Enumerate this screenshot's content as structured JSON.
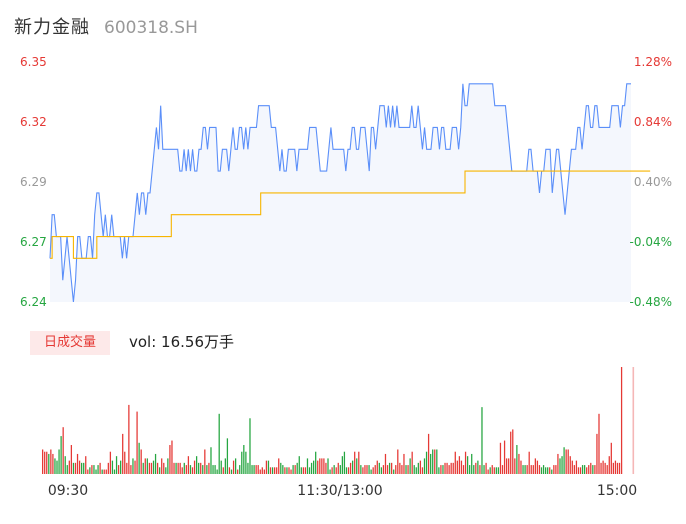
{
  "header": {
    "name": "新力金融",
    "code": "600318.SH"
  },
  "colors": {
    "price_line": "#5b8ff9",
    "avg_line": "#f7b500",
    "up": "#e53935",
    "down": "#26a641",
    "neutral": "#999999",
    "area": "#f4f7fd"
  },
  "volume_panel": {
    "badge": "日成交量",
    "value_text": "vol: 16.56万手"
  },
  "chart_data": [
    {
      "type": "line",
      "x_ticks": [
        "09:30",
        "11:30/13:00",
        "15:00"
      ],
      "y_left_ticks": [
        "6.35",
        "6.32",
        "6.29",
        "6.27",
        "6.24"
      ],
      "y_right_ticks": [
        "1.28%",
        "0.84%",
        "0.40%",
        "-0.04%",
        "-0.48%"
      ],
      "ylim": [
        6.24,
        6.35
      ],
      "series": [
        {
          "key": "price",
          "values": [
            6.26,
            6.28,
            6.28,
            6.27,
            6.27,
            6.27,
            6.25,
            6.26,
            6.27,
            6.26,
            6.25,
            6.24,
            6.25,
            6.27,
            6.27,
            6.26,
            6.26,
            6.26,
            6.27,
            6.27,
            6.26,
            6.28,
            6.29,
            6.29,
            6.28,
            6.27,
            6.28,
            6.27,
            6.27,
            6.28,
            6.27,
            6.27,
            6.27,
            6.27,
            6.26,
            6.27,
            6.26,
            6.27,
            6.27,
            6.27,
            6.28,
            6.29,
            6.28,
            6.29,
            6.29,
            6.28,
            6.29,
            6.29,
            6.3,
            6.31,
            6.32,
            6.31,
            6.33,
            6.31,
            6.31,
            6.31,
            6.31,
            6.31,
            6.31,
            6.31,
            6.31,
            6.3,
            6.3,
            6.31,
            6.3,
            6.31,
            6.3,
            6.31,
            6.3,
            6.3,
            6.31,
            6.31,
            6.32,
            6.32,
            6.31,
            6.32,
            6.32,
            6.32,
            6.32,
            6.3,
            6.3,
            6.31,
            6.31,
            6.31,
            6.3,
            6.31,
            6.32,
            6.31,
            6.31,
            6.32,
            6.32,
            6.31,
            6.32,
            6.31,
            6.32,
            6.32,
            6.32,
            6.32,
            6.33,
            6.33,
            6.33,
            6.33,
            6.33,
            6.33,
            6.32,
            6.32,
            6.32,
            6.31,
            6.3,
            6.31,
            6.3,
            6.3,
            6.31,
            6.31,
            6.31,
            6.31,
            6.3,
            6.31,
            6.31,
            6.31,
            6.31,
            6.31,
            6.32,
            6.32,
            6.32,
            6.32,
            6.31,
            6.3,
            6.3,
            6.3,
            6.3,
            6.31,
            6.32,
            6.31,
            6.31,
            6.31,
            6.31,
            6.31,
            6.31,
            6.3,
            6.31,
            6.31,
            6.32,
            6.32,
            6.31,
            6.31,
            6.32,
            6.32,
            6.32,
            6.31,
            6.3,
            6.32,
            6.32,
            6.31,
            6.32,
            6.33,
            6.33,
            6.33,
            6.32,
            6.33,
            6.32,
            6.33,
            6.32,
            6.33,
            6.32,
            6.32,
            6.32,
            6.32,
            6.32,
            6.32,
            6.33,
            6.32,
            6.32,
            6.33,
            6.32,
            6.31,
            6.32,
            6.31,
            6.31,
            6.31,
            6.32,
            6.32,
            6.32,
            6.31,
            6.32,
            6.32,
            6.31,
            6.31,
            6.31,
            6.32,
            6.32,
            6.32,
            6.31,
            6.32,
            6.34,
            6.33,
            6.33,
            6.34,
            6.34,
            6.34,
            6.34,
            6.34,
            6.34,
            6.34,
            6.34,
            6.34,
            6.34,
            6.34,
            6.34,
            6.33,
            6.33,
            6.33,
            6.33,
            6.33,
            6.33,
            6.32,
            6.31,
            6.3,
            6.3,
            6.3,
            6.3,
            6.3,
            6.3,
            6.3,
            6.3,
            6.31,
            6.31,
            6.3,
            6.3,
            6.3,
            6.29,
            6.3,
            6.3,
            6.31,
            6.31,
            6.31,
            6.29,
            6.3,
            6.31,
            6.31,
            6.3,
            6.29,
            6.28,
            6.29,
            6.3,
            6.31,
            6.31,
            6.31,
            6.32,
            6.32,
            6.31,
            6.32,
            6.33,
            6.33,
            6.32,
            6.32,
            6.33,
            6.33,
            6.32,
            6.32,
            6.32,
            6.32,
            6.32,
            6.32,
            6.33,
            6.33,
            6.33,
            6.33,
            6.32,
            6.33,
            6.33,
            6.34,
            6.34,
            6.34
          ]
        },
        {
          "key": "average",
          "values": [
            6.26,
            6.27,
            6.27,
            6.27,
            6.27,
            6.27,
            6.27,
            6.27,
            6.27,
            6.27,
            6.27,
            6.26,
            6.26,
            6.26,
            6.26,
            6.26,
            6.26,
            6.26,
            6.26,
            6.26,
            6.26,
            6.26,
            6.27,
            6.27,
            6.27,
            6.27,
            6.27,
            6.27,
            6.27,
            6.27,
            6.27,
            6.27,
            6.27,
            6.27,
            6.27,
            6.27,
            6.27,
            6.27,
            6.27,
            6.27,
            6.27,
            6.27,
            6.27,
            6.27,
            6.27,
            6.27,
            6.27,
            6.27,
            6.27,
            6.27,
            6.27,
            6.27,
            6.27,
            6.27,
            6.27,
            6.27,
            6.27,
            6.28,
            6.28,
            6.28,
            6.28,
            6.28,
            6.28,
            6.28,
            6.28,
            6.28,
            6.28,
            6.28,
            6.28,
            6.28,
            6.28,
            6.28,
            6.28,
            6.28,
            6.28,
            6.28,
            6.28,
            6.28,
            6.28,
            6.28,
            6.28,
            6.28,
            6.28,
            6.28,
            6.28,
            6.28,
            6.28,
            6.28,
            6.28,
            6.28,
            6.28,
            6.28,
            6.28,
            6.28,
            6.28,
            6.28,
            6.28,
            6.28,
            6.28,
            6.29,
            6.29,
            6.29,
            6.29,
            6.29,
            6.29,
            6.29,
            6.29,
            6.29,
            6.29,
            6.29,
            6.29,
            6.29,
            6.29,
            6.29,
            6.29,
            6.29,
            6.29,
            6.29,
            6.29,
            6.29,
            6.29,
            6.29,
            6.29,
            6.29,
            6.29,
            6.29,
            6.29,
            6.29,
            6.29,
            6.29,
            6.29,
            6.29,
            6.29,
            6.29,
            6.29,
            6.29,
            6.29,
            6.29,
            6.29,
            6.29,
            6.29,
            6.29,
            6.29,
            6.29,
            6.29,
            6.29,
            6.29,
            6.29,
            6.29,
            6.29,
            6.29,
            6.29,
            6.29,
            6.29,
            6.29,
            6.29,
            6.29,
            6.29,
            6.29,
            6.29,
            6.29,
            6.29,
            6.29,
            6.29,
            6.29,
            6.29,
            6.29,
            6.29,
            6.29,
            6.29,
            6.29,
            6.29,
            6.29,
            6.29,
            6.29,
            6.29,
            6.29,
            6.29,
            6.29,
            6.29,
            6.29,
            6.29,
            6.29,
            6.29,
            6.29,
            6.29,
            6.29,
            6.29,
            6.29,
            6.29,
            6.29,
            6.29,
            6.29,
            6.29,
            6.29,
            6.3,
            6.3,
            6.3,
            6.3,
            6.3,
            6.3,
            6.3,
            6.3,
            6.3,
            6.3,
            6.3,
            6.3,
            6.3,
            6.3,
            6.3,
            6.3,
            6.3,
            6.3,
            6.3,
            6.3,
            6.3,
            6.3,
            6.3,
            6.3,
            6.3,
            6.3,
            6.3,
            6.3,
            6.3,
            6.3,
            6.3,
            6.3,
            6.3,
            6.3,
            6.3,
            6.3,
            6.3,
            6.3,
            6.3,
            6.3,
            6.3,
            6.3,
            6.3,
            6.3,
            6.3,
            6.3,
            6.3,
            6.3,
            6.3,
            6.3,
            6.3,
            6.3,
            6.3,
            6.3,
            6.3,
            6.3,
            6.3,
            6.3,
            6.3,
            6.3,
            6.3,
            6.3,
            6.3,
            6.3,
            6.3,
            6.3,
            6.3,
            6.3,
            6.3,
            6.3,
            6.3,
            6.3,
            6.3,
            6.3,
            6.3,
            6.3,
            6.3,
            6.3,
            6.3,
            6.3,
            6.3,
            6.3,
            6.3,
            6.3,
            6.3,
            6.3,
            6.3,
            6.3
          ]
        }
      ]
    },
    {
      "type": "bar",
      "title": "日成交量",
      "value_text": "vol: 16.56万手",
      "values": [
        11,
        10,
        10,
        9,
        11,
        9,
        7,
        6,
        11,
        17,
        21,
        8,
        4,
        6,
        13,
        5,
        5,
        9,
        6,
        5,
        5,
        8,
        2,
        3,
        4,
        4,
        2,
        4,
        5,
        2,
        2,
        2,
        5,
        10,
        6,
        2,
        8,
        4,
        6,
        18,
        10,
        5,
        31,
        4,
        7,
        6,
        28,
        14,
        11,
        5,
        7,
        7,
        5,
        5,
        6,
        9,
        5,
        3,
        7,
        5,
        3,
        7,
        13,
        15,
        5,
        5,
        5,
        5,
        3,
        5,
        4,
        8,
        4,
        3,
        6,
        8,
        5,
        5,
        4,
        11,
        4,
        5,
        12,
        4,
        4,
        2,
        27,
        6,
        3,
        7,
        16,
        3,
        2,
        6,
        7,
        2,
        4,
        10,
        13,
        10,
        5,
        25,
        4,
        4,
        4,
        4,
        2,
        3,
        2,
        6,
        6,
        3,
        3,
        3,
        3,
        7,
        5,
        4,
        3,
        3,
        3,
        2,
        4,
        4,
        5,
        8,
        3,
        3,
        3,
        7,
        3,
        5,
        6,
        10,
        6,
        7,
        7,
        7,
        5,
        7,
        2,
        3,
        4,
        3,
        5,
        4,
        8,
        10,
        3,
        3,
        5,
        6,
        10,
        7,
        10,
        4,
        3,
        4,
        4,
        4,
        2,
        3,
        4,
        6,
        5,
        3,
        4,
        9,
        4,
        5,
        5,
        2,
        4,
        11,
        5,
        4,
        9,
        4,
        4,
        7,
        10,
        4,
        3,
        5,
        6,
        3,
        7,
        10,
        18,
        9,
        11,
        11,
        11,
        3,
        4,
        4,
        5,
        5,
        4,
        5,
        5,
        10,
        6,
        8,
        6,
        4,
        10,
        8,
        4,
        9,
        4,
        5,
        6,
        4,
        30,
        4,
        5,
        2,
        3,
        4,
        3,
        3,
        3,
        14,
        4,
        15,
        7,
        7,
        19,
        20,
        7,
        13,
        9,
        6,
        4,
        4,
        4,
        10,
        4,
        4,
        7,
        6,
        4,
        3,
        4,
        3,
        3,
        3,
        2,
        4,
        4,
        9,
        7,
        8,
        12,
        11,
        11,
        8,
        6,
        4,
        6,
        3,
        3,
        4,
        4,
        3,
        4,
        5,
        4,
        4,
        18,
        27,
        5,
        6,
        5,
        4,
        8,
        14,
        5,
        6,
        5,
        5,
        48
      ],
      "colors": [
        "r",
        "r",
        "r",
        "g",
        "r",
        "r",
        "g",
        "g",
        "g",
        "g",
        "r",
        "g",
        "g",
        "r",
        "r",
        "g",
        "r",
        "r",
        "r",
        "g",
        "g",
        "r",
        "r",
        "g",
        "r",
        "g",
        "g",
        "g",
        "r",
        "g",
        "r",
        "r",
        "r",
        "r",
        "g",
        "g",
        "g",
        "r",
        "g",
        "r",
        "r",
        "r",
        "r",
        "r",
        "g",
        "r",
        "r",
        "g",
        "r",
        "g",
        "r",
        "g",
        "r",
        "r",
        "g",
        "g",
        "r",
        "g",
        "r",
        "r",
        "g",
        "g",
        "r",
        "r",
        "r",
        "g",
        "r",
        "r",
        "r",
        "g",
        "r",
        "r",
        "g",
        "r",
        "r",
        "g",
        "g",
        "r",
        "g",
        "r",
        "g",
        "r",
        "g",
        "g",
        "g",
        "g",
        "g",
        "g",
        "r",
        "g",
        "g",
        "r",
        "g",
        "r",
        "g",
        "r",
        "g",
        "g",
        "g",
        "g",
        "g",
        "g",
        "g",
        "g",
        "r",
        "r",
        "r",
        "r",
        "r",
        "r",
        "g",
        "r",
        "g",
        "r",
        "r",
        "r",
        "g",
        "g",
        "r",
        "g",
        "r",
        "r",
        "g",
        "r",
        "g",
        "g",
        "g",
        "r",
        "r",
        "g",
        "g",
        "g",
        "g",
        "g",
        "r",
        "r",
        "r",
        "r",
        "r",
        "g",
        "g",
        "r",
        "g",
        "r",
        "r",
        "g",
        "g",
        "g",
        "g",
        "r",
        "r",
        "g",
        "r",
        "g",
        "r",
        "g",
        "r",
        "r",
        "r",
        "g",
        "g",
        "r",
        "r",
        "r",
        "g",
        "g",
        "r",
        "r",
        "r",
        "g",
        "r",
        "g",
        "r",
        "r",
        "r",
        "r",
        "r",
        "g",
        "r",
        "g",
        "r",
        "g",
        "g",
        "g",
        "r",
        "r",
        "g",
        "g",
        "r",
        "g",
        "g",
        "r",
        "g",
        "g",
        "r",
        "g",
        "r",
        "r",
        "r",
        "r",
        "r",
        "r",
        "r",
        "r",
        "r",
        "r",
        "r",
        "g",
        "g",
        "g",
        "g",
        "r",
        "g",
        "r",
        "g",
        "g",
        "r",
        "r",
        "g",
        "r",
        "r",
        "g",
        "g",
        "r",
        "r",
        "r",
        "r",
        "r",
        "r",
        "r",
        "r",
        "g",
        "r",
        "r",
        "g",
        "g",
        "r",
        "r",
        "r",
        "r",
        "r",
        "r",
        "r",
        "g",
        "g",
        "g",
        "g",
        "r",
        "g",
        "r",
        "r",
        "r",
        "g",
        "g",
        "g",
        "r",
        "r",
        "r",
        "r",
        "r",
        "r",
        "r",
        "r",
        "g",
        "g",
        "r",
        "r",
        "r",
        "g",
        "r",
        "r"
      ]
    }
  ]
}
